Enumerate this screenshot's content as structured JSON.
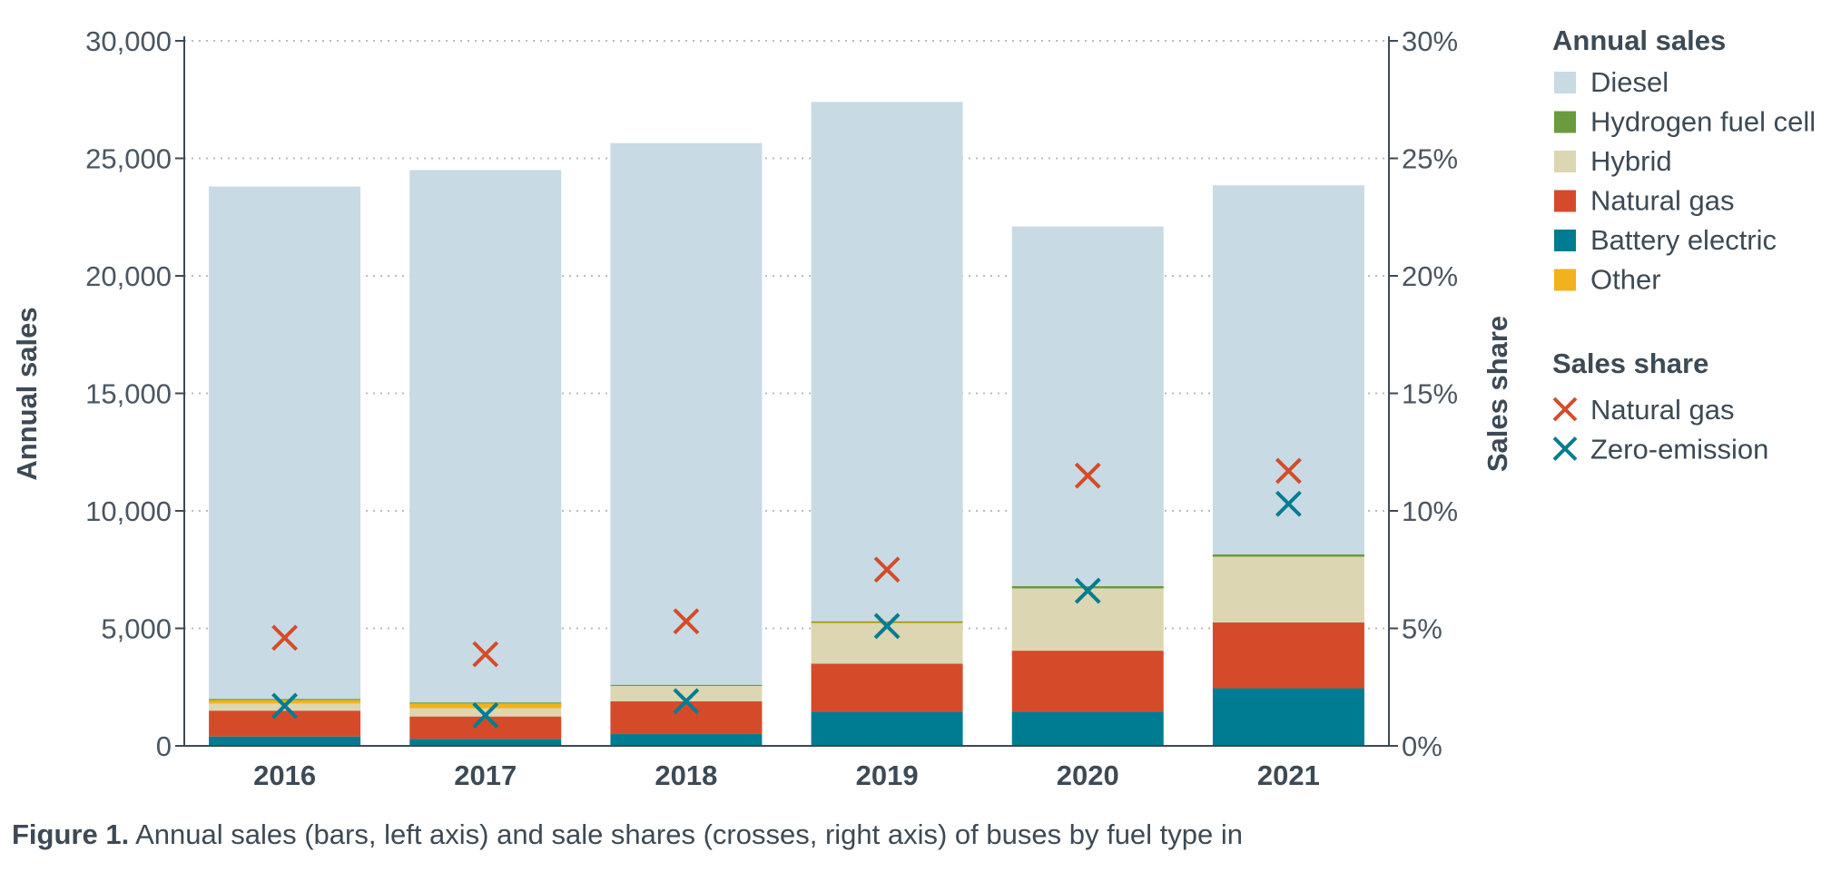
{
  "chart_data": {
    "type": "bar",
    "stacked": true,
    "categories": [
      "2016",
      "2017",
      "2018",
      "2019",
      "2020",
      "2021"
    ],
    "series": [
      {
        "name": "Battery electric",
        "color": "#007c92",
        "values": [
          400,
          300,
          500,
          1450,
          1450,
          2450
        ]
      },
      {
        "name": "Natural gas",
        "color": "#d54b2a",
        "values": [
          1100,
          950,
          1400,
          2050,
          2600,
          2800
        ]
      },
      {
        "name": "Hybrid",
        "color": "#ddd6b2",
        "values": [
          300,
          350,
          650,
          1700,
          2650,
          2800
        ]
      },
      {
        "name": "Other",
        "color": "#f2b21e",
        "values": [
          150,
          200,
          0,
          50,
          0,
          0
        ]
      },
      {
        "name": "Hydrogen fuel cell",
        "color": "#6a9b3c",
        "values": [
          50,
          50,
          50,
          50,
          100,
          100
        ]
      },
      {
        "name": "Diesel",
        "color": "#c8dae3",
        "values": [
          21800,
          22650,
          23050,
          22100,
          15300,
          15700
        ]
      }
    ],
    "share_series": [
      {
        "name": "Natural gas",
        "color": "#d54b2a",
        "values": [
          4.6,
          3.9,
          5.3,
          7.5,
          11.5,
          11.7
        ]
      },
      {
        "name": "Zero-emission",
        "color": "#007c92",
        "values": [
          1.7,
          1.3,
          1.9,
          5.1,
          6.6,
          10.3
        ]
      }
    ],
    "ylabel": "Annual sales",
    "y2label": "Sales share",
    "ylim": [
      0,
      30000
    ],
    "y2lim": [
      0,
      30
    ],
    "yticks": [
      "0",
      "5,000",
      "10,000",
      "15,000",
      "20,000",
      "25,000",
      "30,000"
    ],
    "y2ticks": [
      "0%",
      "5%",
      "10%",
      "15%",
      "20%",
      "25%",
      "30%"
    ],
    "grid": true,
    "legend_position": "right"
  },
  "legend": {
    "sales_title": "Annual sales",
    "sales_items": [
      {
        "label": "Diesel",
        "color": "#c8dae3"
      },
      {
        "label": "Hydrogen fuel cell",
        "color": "#6a9b3c"
      },
      {
        "label": "Hybrid",
        "color": "#ddd6b2"
      },
      {
        "label": "Natural gas",
        "color": "#d54b2a"
      },
      {
        "label": "Battery electric",
        "color": "#007c92"
      },
      {
        "label": "Other",
        "color": "#f2b21e"
      }
    ],
    "share_title": "Sales share",
    "share_items": [
      {
        "label": "Natural gas",
        "color": "#d54b2a"
      },
      {
        "label": "Zero-emission",
        "color": "#007c92"
      }
    ]
  },
  "caption": {
    "label": "Figure 1.",
    "text": "Annual sales (bars, left axis) and sale shares (crosses, right axis) of buses by fuel type in"
  }
}
